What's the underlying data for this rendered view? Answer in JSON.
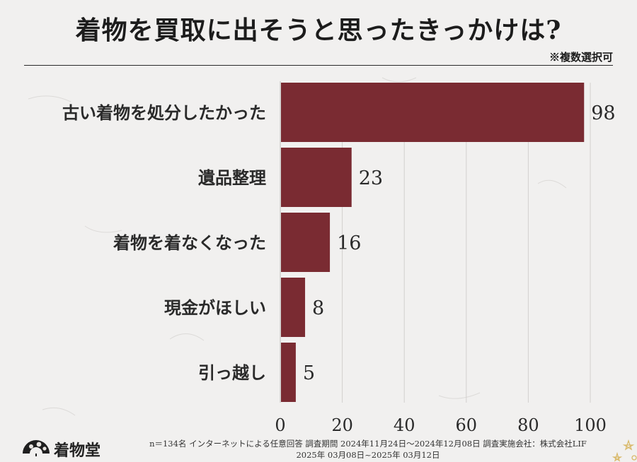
{
  "title": "着物を買取に出そうと思ったきっかけは?",
  "note": "※複数選択可",
  "chart_data": {
    "type": "bar",
    "orientation": "horizontal",
    "categories": [
      "古い着物を処分したかった",
      "遺品整理",
      "着物を着なくなった",
      "現金がほしい",
      "引っ越し"
    ],
    "values": [
      98,
      23,
      16,
      8,
      5
    ],
    "xlim": [
      0,
      100
    ],
    "xticks": [
      0,
      20,
      40,
      60,
      80,
      100
    ],
    "grid": true,
    "bar_color": "#7a2b32"
  },
  "footer": {
    "line1": "n＝134名 インターネットによる任意回答 調査期間 2024年11月24日～2024年12月08日 調査実施会社：株式会社LIF",
    "line2": "2025年 03月08日~2025年 03月12日"
  },
  "logo": {
    "text": "着物堂",
    "icon": "folding-fan-icon"
  }
}
